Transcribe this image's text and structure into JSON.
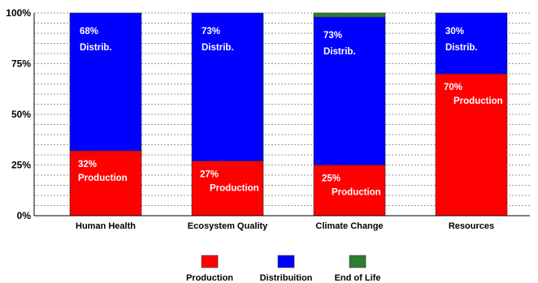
{
  "chart_data": {
    "type": "bar",
    "stacked": true,
    "percent": true,
    "categories": [
      "Human Health",
      "Ecosystem Quality",
      "Climate Change",
      "Resources"
    ],
    "series": [
      {
        "name": "Production",
        "color": "#ff0000",
        "values": [
          32,
          27,
          25,
          70
        ]
      },
      {
        "name": "Distribuition",
        "color": "#0000ff",
        "values": [
          68,
          73,
          73,
          30
        ]
      },
      {
        "name": "End of Life",
        "color": "#2e7d32",
        "values": [
          0,
          0,
          2,
          0
        ]
      }
    ],
    "y_ticks": [
      "0%",
      "25%",
      "50%",
      "75%",
      "100%"
    ],
    "ylim": [
      0,
      100
    ],
    "grid": "horizontal dashed",
    "legend": "bottom",
    "data_labels": [
      [
        {
          "value": "32%",
          "name": "Production"
        },
        {
          "value": "68%",
          "name": "Distrib."
        },
        null
      ],
      [
        {
          "value": "27%",
          "name": "Production"
        },
        {
          "value": "73%",
          "name": "Distrib."
        },
        null
      ],
      [
        {
          "value": "25%",
          "name": "Production"
        },
        {
          "value": "73%",
          "name": "Distrib."
        },
        null
      ],
      [
        {
          "value": "70%",
          "name": "Production"
        },
        {
          "value": "30%",
          "name": "Distrib."
        },
        null
      ]
    ]
  }
}
